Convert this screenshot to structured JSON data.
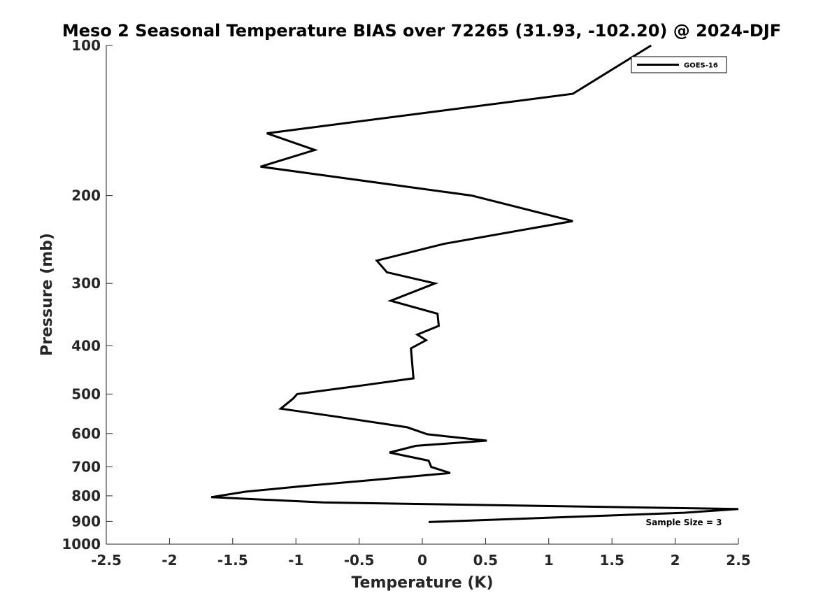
{
  "chart_data": {
    "type": "line",
    "title": "Meso 2 Seasonal Temperature BIAS over 72265 (31.93, -102.20) @ 2024-DJF",
    "xlabel": "Temperature (K)",
    "ylabel": "Pressure (mb)",
    "xlim": [
      -2.5,
      2.5
    ],
    "ylim": [
      100,
      1000
    ],
    "yscale": "log",
    "yreversed": true,
    "grid": false,
    "legend_position": "top-right",
    "x_ticks": [
      -2.5,
      -2,
      -1.5,
      -1,
      -0.5,
      0,
      0.5,
      1,
      1.5,
      2,
      2.5
    ],
    "x_tick_labels": [
      "-2.5",
      "-2",
      "-1.5",
      "-1",
      "-0.5",
      "0",
      "0.5",
      "1",
      "1.5",
      "2",
      "2.5"
    ],
    "y_ticks": [
      100,
      200,
      300,
      400,
      500,
      600,
      700,
      800,
      900,
      1000
    ],
    "y_tick_labels": [
      "100",
      "200",
      "300",
      "400",
      "500",
      "600",
      "700",
      "800",
      "900",
      "1000"
    ],
    "series": [
      {
        "name": "GOES-16",
        "color": "#000000",
        "points": [
          {
            "x": 1.81,
            "p": 100
          },
          {
            "x": 1.19,
            "p": 125
          },
          {
            "x": -1.23,
            "p": 150
          },
          {
            "x": -0.85,
            "p": 162
          },
          {
            "x": -1.28,
            "p": 175
          },
          {
            "x": 0.39,
            "p": 200
          },
          {
            "x": 1.19,
            "p": 225
          },
          {
            "x": 0.17,
            "p": 250
          },
          {
            "x": -0.36,
            "p": 270
          },
          {
            "x": -0.28,
            "p": 285
          },
          {
            "x": 0.1,
            "p": 300
          },
          {
            "x": -0.25,
            "p": 325
          },
          {
            "x": 0.12,
            "p": 345
          },
          {
            "x": 0.13,
            "p": 365
          },
          {
            "x": -0.04,
            "p": 380
          },
          {
            "x": 0.03,
            "p": 390
          },
          {
            "x": -0.09,
            "p": 405
          },
          {
            "x": -0.07,
            "p": 465
          },
          {
            "x": -0.46,
            "p": 480
          },
          {
            "x": -0.99,
            "p": 500
          },
          {
            "x": -1.02,
            "p": 510
          },
          {
            "x": -1.12,
            "p": 535
          },
          {
            "x": -0.68,
            "p": 555
          },
          {
            "x": -0.12,
            "p": 583
          },
          {
            "x": 0.04,
            "p": 602
          },
          {
            "x": 0.51,
            "p": 620
          },
          {
            "x": -0.05,
            "p": 635
          },
          {
            "x": -0.26,
            "p": 655
          },
          {
            "x": 0.05,
            "p": 680
          },
          {
            "x": 0.07,
            "p": 700
          },
          {
            "x": 0.22,
            "p": 720
          },
          {
            "x": -0.3,
            "p": 740
          },
          {
            "x": -0.95,
            "p": 765
          },
          {
            "x": -1.4,
            "p": 785
          },
          {
            "x": -1.67,
            "p": 805
          },
          {
            "x": -0.78,
            "p": 825
          },
          {
            "x": 2.5,
            "p": 850
          },
          {
            "x": 2.07,
            "p": 865
          },
          {
            "x": 0.05,
            "p": 903
          }
        ]
      }
    ],
    "annotations": [
      {
        "text": "Sample Size = 3"
      }
    ]
  }
}
